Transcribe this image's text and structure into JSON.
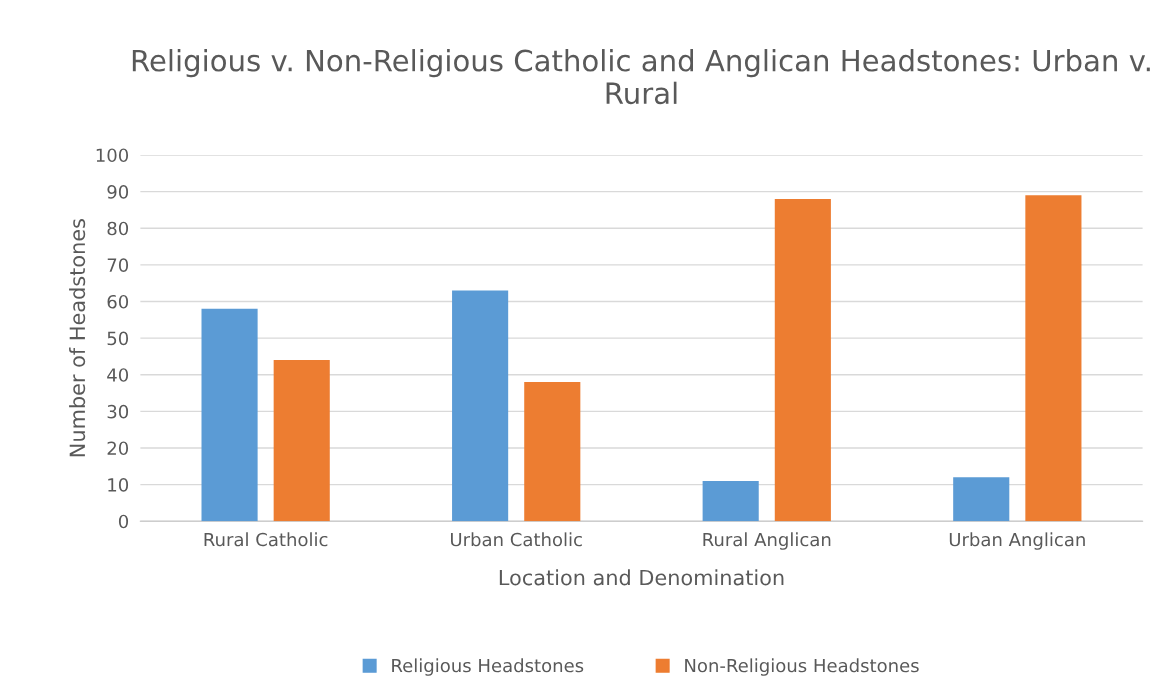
{
  "chart_data": {
    "type": "bar",
    "title": "Religious v. Non-Religious Catholic and Anglican Headstones: Urban v. Rural",
    "xlabel": "Location and Denomination",
    "ylabel": "Number of Headstones",
    "categories": [
      "Rural Catholic",
      "Urban Catholic",
      "Rural Anglican",
      "Urban Anglican"
    ],
    "series": [
      {
        "name": "Religious Headstones",
        "color": "#5b9bd5",
        "values": [
          58,
          63,
          11,
          12
        ]
      },
      {
        "name": "Non-Religious Headstones",
        "color": "#ed7d31",
        "values": [
          44,
          38,
          88,
          89
        ]
      }
    ],
    "ylim": [
      0,
      100
    ],
    "yticks": [
      0,
      10,
      20,
      30,
      40,
      50,
      60,
      70,
      80,
      90,
      100
    ],
    "grid": "y",
    "legend": "bottom"
  }
}
